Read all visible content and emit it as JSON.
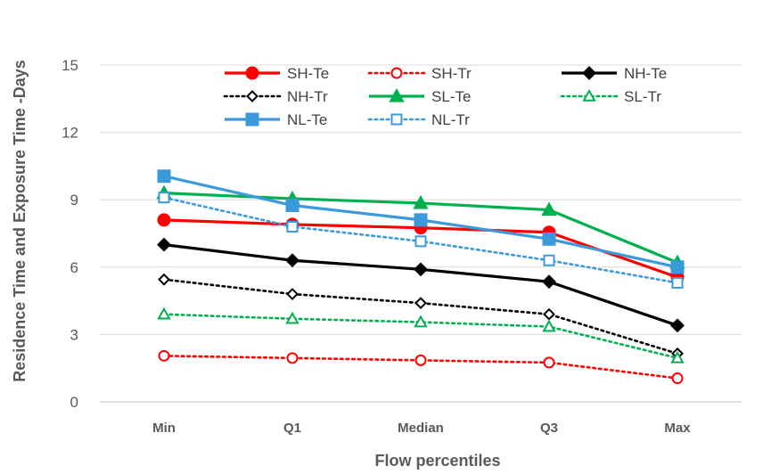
{
  "chart_data": {
    "type": "line",
    "xlabel": "Flow percentiles",
    "ylabel": "Residence Time and Exposure Time -Days",
    "categories": [
      "Min",
      "Q1",
      "Median",
      "Q3",
      "Max"
    ],
    "ylim": [
      0,
      15
    ],
    "yticks": [
      "0",
      "3",
      "6",
      "9",
      "12",
      "15"
    ],
    "grid": "horizontal",
    "legend_position": "top",
    "series": [
      {
        "name": "SH-Te",
        "color": "#ff0000",
        "dash": "solid",
        "marker": "circle-filled",
        "values": [
          8.1,
          7.9,
          7.75,
          7.55,
          5.55
        ]
      },
      {
        "name": "SH-Tr",
        "color": "#ff0000",
        "dash": "dotted",
        "marker": "circle-open",
        "values": [
          2.05,
          1.95,
          1.85,
          1.75,
          1.05
        ]
      },
      {
        "name": "NH-Te",
        "color": "#000000",
        "dash": "solid",
        "marker": "diamond-filled",
        "values": [
          7.0,
          6.3,
          5.9,
          5.35,
          3.4
        ]
      },
      {
        "name": "NH-Tr",
        "color": "#000000",
        "dash": "dotted",
        "marker": "diamond-open",
        "values": [
          5.45,
          4.8,
          4.4,
          3.9,
          2.15
        ]
      },
      {
        "name": "SL-Te",
        "color": "#00b050",
        "dash": "solid",
        "marker": "triangle-filled",
        "values": [
          9.3,
          9.05,
          8.85,
          8.55,
          6.2
        ]
      },
      {
        "name": "SL-Tr",
        "color": "#00b050",
        "dash": "dotted",
        "marker": "triangle-open",
        "values": [
          3.9,
          3.7,
          3.55,
          3.35,
          1.95
        ]
      },
      {
        "name": "NL-Te",
        "color": "#3b9ad9",
        "dash": "solid",
        "marker": "square-filled",
        "values": [
          10.05,
          8.75,
          8.1,
          7.25,
          6.0
        ]
      },
      {
        "name": "NL-Tr",
        "color": "#3b9ad9",
        "dash": "dotted",
        "marker": "square-open",
        "values": [
          9.1,
          7.8,
          7.15,
          6.3,
          5.3
        ]
      }
    ]
  }
}
